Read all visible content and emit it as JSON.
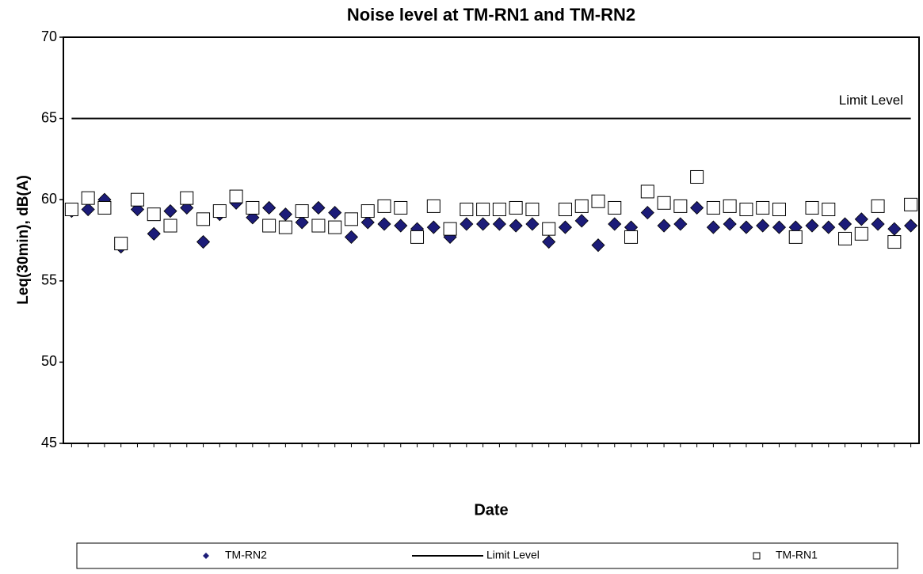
{
  "chart_data": {
    "type": "scatter",
    "title": "Noise level at TM-RN1 and TM-RN2",
    "x_label": "Date",
    "y_label": "Leq(30min), dB(A)",
    "annotation": "Limit Level",
    "categories": [
      null,
      null,
      null,
      null,
      null,
      null,
      null,
      null,
      null,
      null,
      null,
      null,
      null,
      null,
      null,
      null,
      null,
      null,
      null,
      null,
      null,
      null,
      null,
      null,
      null,
      null,
      null,
      null,
      null,
      null,
      null,
      null,
      null,
      null,
      null,
      null,
      null,
      null,
      null,
      null,
      null,
      null,
      null,
      null,
      null,
      null,
      null,
      null,
      null,
      null,
      null,
      null
    ],
    "ylim": [
      45,
      70
    ],
    "yticks": [
      45,
      50,
      55,
      60,
      65,
      70
    ],
    "grid": false,
    "legend": "bottom",
    "series": [
      {
        "name": "TM-RN2",
        "color": "#1c1c78",
        "marker": "diamond",
        "values": [
          59.3,
          59.4,
          60.0,
          57.1,
          59.4,
          57.9,
          59.3,
          59.5,
          57.4,
          59.1,
          59.8,
          58.9,
          59.5,
          59.1,
          58.6,
          59.5,
          59.2,
          57.7,
          58.6,
          58.5,
          58.4,
          58.2,
          58.3,
          57.7,
          58.5,
          58.5,
          58.5,
          58.4,
          58.5,
          57.4,
          58.3,
          58.7,
          57.2,
          58.5,
          58.3,
          59.2,
          58.4,
          58.5,
          59.5,
          58.3,
          58.5,
          58.3,
          58.4,
          58.3,
          58.3,
          58.4,
          58.3,
          58.5,
          58.8,
          58.5,
          58.2,
          58.4
        ]
      },
      {
        "name": "Limit Level",
        "color": "#000000",
        "marker": "line",
        "values": [
          65,
          65,
          65,
          65,
          65,
          65,
          65,
          65,
          65,
          65,
          65,
          65,
          65,
          65,
          65,
          65,
          65,
          65,
          65,
          65,
          65,
          65,
          65,
          65,
          65,
          65,
          65,
          65,
          65,
          65,
          65,
          65,
          65,
          65,
          65,
          65,
          65,
          65,
          65,
          65,
          65,
          65,
          65,
          65,
          65,
          65,
          65,
          65,
          65,
          65,
          65,
          65
        ]
      },
      {
        "name": "TM-RN1",
        "color": "#000000",
        "marker": "square",
        "values": [
          59.4,
          60.1,
          59.5,
          57.3,
          60.0,
          59.1,
          58.4,
          60.1,
          58.8,
          59.3,
          60.2,
          59.5,
          58.4,
          58.3,
          59.3,
          58.4,
          58.3,
          58.8,
          59.3,
          59.6,
          59.5,
          57.7,
          59.6,
          58.2,
          59.4,
          59.4,
          59.4,
          59.5,
          59.4,
          58.2,
          59.4,
          59.6,
          59.9,
          59.5,
          57.7,
          60.5,
          59.8,
          59.6,
          61.4,
          59.5,
          59.6,
          59.4,
          59.5,
          59.4,
          57.7,
          59.5,
          59.4,
          57.6,
          57.9,
          59.6,
          57.4,
          59.7
        ]
      }
    ]
  }
}
